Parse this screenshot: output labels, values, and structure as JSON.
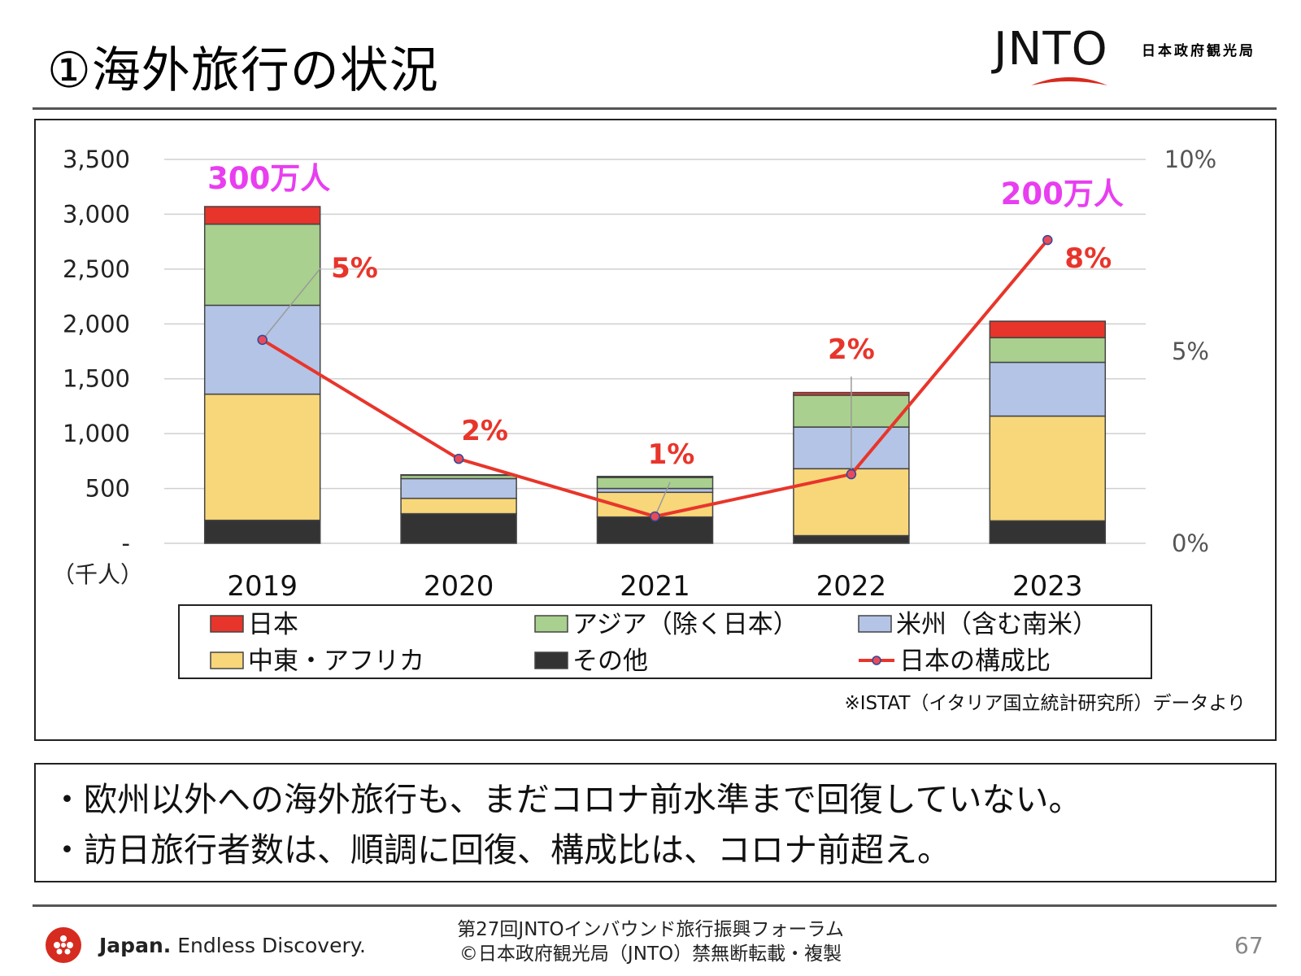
{
  "header": {
    "title": "①海外旅行の状況",
    "logo_text": "JNTO",
    "agency_name": "日本政府観光局"
  },
  "chart_data": {
    "type": "bar",
    "stacked": true,
    "categories": [
      "2019",
      "2020",
      "2021",
      "2022",
      "2023"
    ],
    "unit_label": "（千人）",
    "left_axis": {
      "ticks": [
        "-",
        "500",
        "1,000",
        "1,500",
        "2,000",
        "2,500",
        "3,000",
        "3,500"
      ],
      "ylim": [
        0,
        3500
      ]
    },
    "right_axis": {
      "ticks": [
        "0%",
        "5%",
        "10%"
      ],
      "ylim": [
        0,
        10
      ]
    },
    "series": [
      {
        "name": "その他",
        "color": "#333333",
        "values": [
          210,
          270,
          240,
          70,
          205
        ]
      },
      {
        "name": "中東・アフリカ",
        "color": "#f7d77a",
        "values": [
          1150,
          140,
          225,
          610,
          955
        ]
      },
      {
        "name": "米州（含む南米）",
        "color": "#b4c4e6",
        "values": [
          810,
          180,
          35,
          380,
          490
        ]
      },
      {
        "name": "アジア（除く日本）",
        "color": "#a9d08e",
        "values": [
          740,
          30,
          100,
          290,
          225
        ]
      },
      {
        "name": "日本",
        "color": "#e8352b",
        "values": [
          160,
          5,
          10,
          25,
          150
        ]
      }
    ],
    "line_series": {
      "name": "日本の構成比",
      "color": "#e8352b",
      "axis": "right",
      "values": [
        5.3,
        2.2,
        0.7,
        1.8,
        7.9
      ]
    },
    "data_labels": [
      "5%",
      "2%",
      "1%",
      "2%",
      "8%"
    ],
    "totals_annotations": [
      {
        "category": "2019",
        "text": "300万人"
      },
      {
        "category": "2023",
        "text": "200万人"
      }
    ],
    "legend_position": "bottom",
    "legend_order": [
      "日本",
      "アジア（除く日本）",
      "米州（含む南米）",
      "中東・アフリカ",
      "その他",
      "日本の構成比"
    ],
    "source_note": "※ISTAT（イタリア国立統計研究所）データより",
    "grid": true
  },
  "summary": {
    "lines": [
      "・欧州以外への海外旅行も、まだコロナ前水準まで回復していない。",
      "・訪日旅行者数は、順調に回復、構成比は、コロナ前超え。"
    ]
  },
  "footer": {
    "brand_bold": "Japan.",
    "brand_tagline": "Endless Discovery.",
    "forum": "第27回JNTOインバウンド旅行振興フォーラム",
    "copyright": "©日本政府観光局（JNTO）禁無断転載・複製",
    "page_number": "67"
  }
}
